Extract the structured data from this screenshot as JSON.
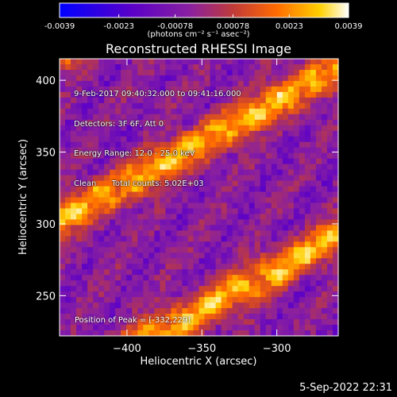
{
  "chart_data": {
    "type": "heatmap",
    "title": "Reconstructed RHESSI Image",
    "xlabel": "Heliocentric X (arcsec)",
    "ylabel": "Heliocentric Y (arcsec)",
    "xlim": [
      -445,
      -259
    ],
    "ylim": [
      222,
      415
    ],
    "xticks": [
      -400,
      -350,
      -300
    ],
    "yticks": [
      250,
      300,
      350,
      400
    ],
    "colorbar": {
      "ticks": [
        "-0.0039",
        "-0.0023",
        "-0.00078",
        "0.00078",
        "0.0023",
        "0.0039"
      ],
      "range": [
        -0.0039,
        0.0039
      ],
      "unit_label": "(photons cm⁻² s⁻¹ asec⁻²)",
      "colormap": [
        "#0000ff",
        "#5a00c8",
        "#8a20a0",
        "#c03a3a",
        "#ff6a00",
        "#ffd000",
        "#ffffff"
      ]
    },
    "annotations": [
      "9-Feb-2017 09:40:32.000 to 09:41:16.000",
      "Detectors: 3F 6F, Att 0",
      "Energy Range: 12.0 - 25.0 keV",
      "Clean      Total counts: 5.02E+03"
    ],
    "peak_label": "Position of Peak = [-332,229]",
    "description_bands": "diagonal bright bands rising left-to-right"
  },
  "footer": {
    "timestamp": "5-Sep-2022 22:31"
  }
}
